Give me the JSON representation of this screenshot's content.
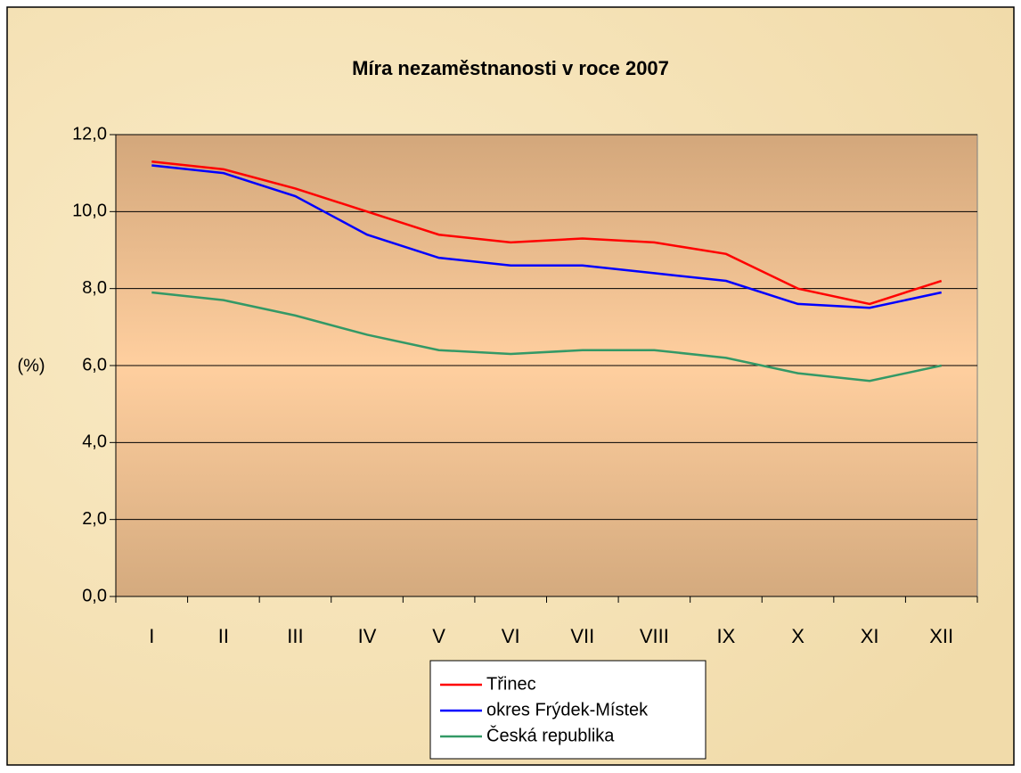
{
  "chart_data": {
    "type": "line",
    "title": "Míra nezaměstnanosti v roce 2007",
    "y_label": "(%)",
    "categories": [
      "I",
      "II",
      "III",
      "IV",
      "V",
      "VI",
      "VII",
      "VIII",
      "IX",
      "X",
      "XI",
      "XII"
    ],
    "series": [
      {
        "name": "Třinec",
        "color": "#ff0000",
        "values": [
          11.3,
          11.1,
          10.6,
          10.0,
          9.4,
          9.2,
          9.3,
          9.2,
          8.9,
          8.0,
          7.6,
          8.2
        ]
      },
      {
        "name": "okres Frýdek-Místek",
        "color": "#0000ff",
        "values": [
          11.2,
          11.0,
          10.4,
          9.4,
          8.8,
          8.6,
          8.6,
          8.4,
          8.2,
          7.6,
          7.5,
          7.9
        ]
      },
      {
        "name": "Česká republika",
        "color": "#339966",
        "values": [
          7.9,
          7.7,
          7.3,
          6.8,
          6.4,
          6.3,
          6.4,
          6.4,
          6.2,
          5.8,
          5.6,
          6.0
        ]
      }
    ],
    "ylim": [
      0,
      12
    ],
    "yticks": [
      {
        "value": 0,
        "label": "0,0"
      },
      {
        "value": 2,
        "label": "2,0"
      },
      {
        "value": 4,
        "label": "4,0"
      },
      {
        "value": 6,
        "label": "6,0"
      },
      {
        "value": 8,
        "label": "8,0"
      },
      {
        "value": 10,
        "label": "10,0"
      },
      {
        "value": 12,
        "label": "12,0"
      }
    ],
    "grid": true,
    "legend": "bottom"
  }
}
